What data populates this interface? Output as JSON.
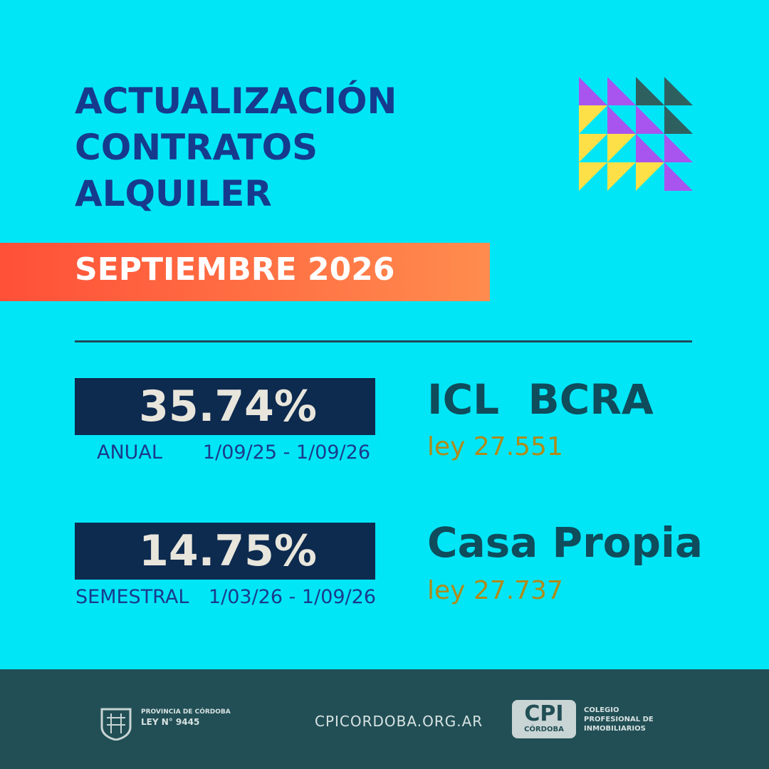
{
  "header": {
    "title_lines": [
      "ACTUALIZACIÓN",
      "CONTRATOS",
      "ALQUILER"
    ],
    "month": "SEPTIEMBRE 2026"
  },
  "indices": [
    {
      "value": "35.74%",
      "period": "ANUAL",
      "dates": "1/09/25 - 1/09/26",
      "name": "ICL  BCRA",
      "law": "ley 27.551"
    },
    {
      "value": "14.75%",
      "period": "SEMESTRAL",
      "dates": "1/03/26 - 1/09/26",
      "name": "Casa Propia",
      "law": "ley 27.737"
    }
  ],
  "footer": {
    "province": "PROVINCIA DE CÓRDOBA",
    "province_law": "LEY N° 9445",
    "website": "CPICORDOBA.ORG.AR",
    "logo": "CPI",
    "logo_sub": "CÓRDOBA",
    "org_lines": [
      "COLEGIO",
      "PROFESIONAL DE",
      "INMOBILIARIOS"
    ]
  }
}
